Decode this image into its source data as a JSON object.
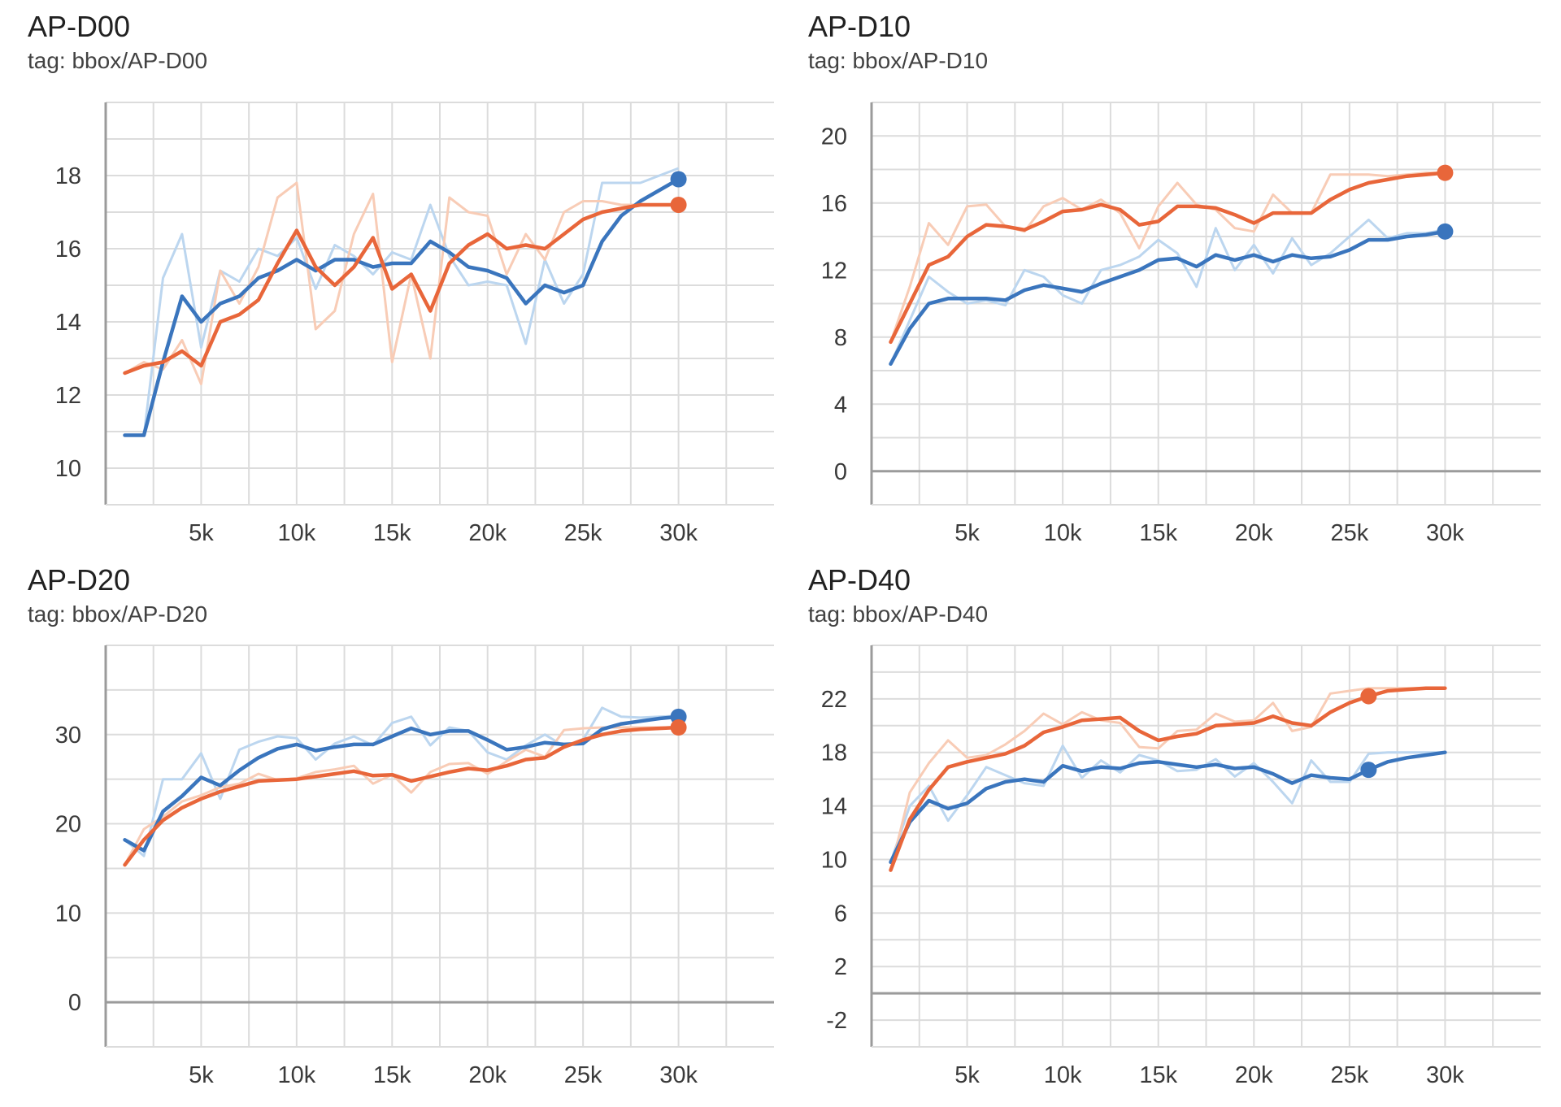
{
  "colors": {
    "blue": "#3a75bd",
    "orange": "#e8663a",
    "blue_raw": "#bcd6ef",
    "orange_raw": "#f8ccb6",
    "grid": "#dcdcdc",
    "axis": "#9b9b9b"
  },
  "chart_data": [
    {
      "type": "line",
      "title": "AP-D00",
      "subtitle": "tag: bbox/AP-D00",
      "xlim": [
        0,
        35000
      ],
      "ylim": [
        9,
        20
      ],
      "xticks": [
        5000,
        10000,
        15000,
        20000,
        25000,
        30000
      ],
      "xtick_labels": [
        "5k",
        "10k",
        "15k",
        "20k",
        "25k",
        "30k"
      ],
      "yticks": [
        10,
        12,
        14,
        16,
        18
      ],
      "ytick_labels": [
        "10",
        "12",
        "14",
        "16",
        "18"
      ],
      "grid": true,
      "x": [
        1000,
        2000,
        3000,
        4000,
        5000,
        6000,
        7000,
        8000,
        9000,
        10000,
        11000,
        12000,
        13000,
        14000,
        15000,
        16000,
        17000,
        18000,
        19000,
        20000,
        21000,
        22000,
        23000,
        24000,
        25000,
        26000,
        27000,
        28000,
        29000,
        30000
      ],
      "series": [
        {
          "color": "blue",
          "values": [
            10.9,
            10.9,
            12.9,
            14.7,
            14.0,
            14.5,
            14.7,
            15.2,
            15.4,
            15.7,
            15.4,
            15.7,
            15.7,
            15.5,
            15.6,
            15.6,
            16.2,
            15.9,
            15.5,
            15.4,
            15.2,
            14.5,
            15.0,
            14.8,
            15.0,
            16.2,
            16.9,
            17.3,
            17.6,
            17.9
          ],
          "raw": [
            10.9,
            10.9,
            15.2,
            16.4,
            13.3,
            15.4,
            15.1,
            16.0,
            15.8,
            16.3,
            14.9,
            16.1,
            15.8,
            15.3,
            15.9,
            15.7,
            17.2,
            15.8,
            15.0,
            15.1,
            15.0,
            13.4,
            15.7,
            14.5,
            15.3,
            17.8,
            17.8,
            17.8,
            18.0,
            18.2
          ],
          "end_marker": true
        },
        {
          "color": "orange",
          "values": [
            12.6,
            12.8,
            12.9,
            13.2,
            12.8,
            14.0,
            14.2,
            14.6,
            15.6,
            16.5,
            15.5,
            15.0,
            15.5,
            16.3,
            14.9,
            15.3,
            14.3,
            15.6,
            16.1,
            16.4,
            16.0,
            16.1,
            16.0,
            16.4,
            16.8,
            17.0,
            17.1,
            17.2,
            17.2,
            17.2
          ],
          "raw": [
            12.6,
            12.9,
            12.7,
            13.5,
            12.3,
            15.4,
            14.5,
            15.5,
            17.4,
            17.8,
            13.8,
            14.3,
            16.4,
            17.5,
            12.9,
            15.3,
            13.0,
            17.4,
            17.0,
            16.9,
            15.3,
            16.4,
            15.7,
            17.0,
            17.3,
            17.3,
            17.2,
            17.2,
            17.2,
            17.2
          ],
          "end_marker": true
        }
      ]
    },
    {
      "type": "line",
      "title": "AP-D10",
      "subtitle": "tag: bbox/AP-D10",
      "xlim": [
        0,
        35000
      ],
      "ylim": [
        -2,
        22
      ],
      "xticks": [
        5000,
        10000,
        15000,
        20000,
        25000,
        30000
      ],
      "xtick_labels": [
        "5k",
        "10k",
        "15k",
        "20k",
        "25k",
        "30k"
      ],
      "yticks": [
        0,
        4,
        8,
        12,
        16,
        20
      ],
      "ytick_labels": [
        "0",
        "4",
        "8",
        "12",
        "16",
        "20"
      ],
      "grid": true,
      "x": [
        1000,
        2000,
        3000,
        4000,
        5000,
        6000,
        7000,
        8000,
        9000,
        10000,
        11000,
        12000,
        13000,
        14000,
        15000,
        16000,
        17000,
        18000,
        19000,
        20000,
        21000,
        22000,
        23000,
        24000,
        25000,
        26000,
        27000,
        28000,
        29000,
        30000
      ],
      "series": [
        {
          "color": "blue",
          "values": [
            6.4,
            8.5,
            10.0,
            10.3,
            10.3,
            10.3,
            10.2,
            10.8,
            11.1,
            10.9,
            10.7,
            11.2,
            11.6,
            12.0,
            12.6,
            12.7,
            12.2,
            12.9,
            12.6,
            12.9,
            12.5,
            12.9,
            12.7,
            12.8,
            13.2,
            13.8,
            13.8,
            14.0,
            14.1,
            14.3
          ],
          "raw": [
            6.4,
            9.0,
            11.6,
            10.7,
            10.0,
            10.2,
            9.9,
            12.0,
            11.6,
            10.5,
            10.0,
            12.0,
            12.3,
            12.8,
            13.8,
            13.0,
            11.0,
            14.5,
            12.0,
            13.5,
            11.8,
            13.9,
            12.3,
            13.0,
            14.0,
            15.0,
            13.9,
            14.2,
            14.2,
            14.4
          ],
          "end_marker": true
        },
        {
          "color": "orange",
          "values": [
            7.7,
            10.0,
            12.3,
            12.8,
            14.0,
            14.7,
            14.6,
            14.4,
            14.9,
            15.5,
            15.6,
            15.9,
            15.6,
            14.7,
            14.9,
            15.8,
            15.8,
            15.7,
            15.3,
            14.8,
            15.4,
            15.4,
            15.4,
            16.2,
            16.8,
            17.2,
            17.4,
            17.6,
            17.7,
            17.8
          ],
          "raw": [
            7.7,
            11.0,
            14.8,
            13.5,
            15.8,
            15.9,
            14.6,
            14.3,
            15.8,
            16.3,
            15.6,
            16.2,
            15.4,
            13.3,
            15.8,
            17.2,
            15.9,
            15.6,
            14.5,
            14.3,
            16.5,
            15.4,
            15.4,
            17.7,
            17.7,
            17.7,
            17.6,
            17.7,
            17.8,
            17.8
          ],
          "end_marker": true
        }
      ]
    },
    {
      "type": "line",
      "title": "AP-D20",
      "subtitle": "tag: bbox/AP-D20",
      "xlim": [
        0,
        35000
      ],
      "ylim": [
        -5,
        40
      ],
      "xticks": [
        5000,
        10000,
        15000,
        20000,
        25000,
        30000
      ],
      "xtick_labels": [
        "5k",
        "10k",
        "15k",
        "20k",
        "25k",
        "30k"
      ],
      "yticks": [
        0,
        10,
        20,
        30
      ],
      "ytick_labels": [
        "0",
        "10",
        "20",
        "30"
      ],
      "grid": true,
      "x": [
        1000,
        2000,
        3000,
        4000,
        5000,
        6000,
        7000,
        8000,
        9000,
        10000,
        11000,
        12000,
        13000,
        14000,
        15000,
        16000,
        17000,
        18000,
        19000,
        20000,
        21000,
        22000,
        23000,
        24000,
        25000,
        26000,
        27000,
        28000,
        29000,
        30000
      ],
      "series": [
        {
          "color": "blue",
          "values": [
            18.2,
            17.0,
            21.4,
            23.1,
            25.2,
            24.3,
            26.0,
            27.4,
            28.4,
            28.9,
            28.2,
            28.6,
            28.9,
            28.9,
            29.8,
            30.7,
            30.0,
            30.4,
            30.4,
            29.4,
            28.3,
            28.6,
            29.1,
            28.9,
            29.0,
            30.6,
            31.2,
            31.5,
            31.8,
            32.0
          ],
          "raw": [
            18.2,
            16.4,
            25.0,
            25.0,
            27.9,
            22.8,
            28.3,
            29.2,
            29.8,
            29.6,
            27.2,
            29.0,
            29.8,
            28.8,
            31.3,
            32.0,
            28.8,
            30.8,
            30.4,
            28.0,
            27.2,
            28.8,
            30.0,
            28.7,
            29.4,
            33.0,
            32.0,
            31.9,
            32.0,
            32.1
          ],
          "end_marker": true
        },
        {
          "color": "orange",
          "values": [
            15.4,
            18.2,
            20.4,
            21.8,
            22.8,
            23.6,
            24.2,
            24.8,
            24.9,
            25.0,
            25.3,
            25.6,
            25.9,
            25.4,
            25.5,
            24.8,
            25.3,
            25.8,
            26.2,
            26.0,
            26.5,
            27.2,
            27.4,
            28.6,
            29.4,
            30.0,
            30.4,
            30.6,
            30.7,
            30.8
          ],
          "raw": [
            15.4,
            19.4,
            20.8,
            22.5,
            23.2,
            24.1,
            24.5,
            25.6,
            24.9,
            25.1,
            25.8,
            26.1,
            26.5,
            24.5,
            25.5,
            23.5,
            25.8,
            26.7,
            26.8,
            25.6,
            27.0,
            28.3,
            27.5,
            30.5,
            30.7,
            30.8,
            30.8,
            30.8,
            30.8,
            30.8
          ],
          "end_marker": true
        }
      ]
    },
    {
      "type": "line",
      "title": "AP-D40",
      "subtitle": "tag: bbox/AP-D40",
      "xlim": [
        0,
        35000
      ],
      "ylim": [
        -4,
        26
      ],
      "xticks": [
        5000,
        10000,
        15000,
        20000,
        25000,
        30000
      ],
      "xtick_labels": [
        "5k",
        "10k",
        "15k",
        "20k",
        "25k",
        "30k"
      ],
      "yticks": [
        -2,
        2,
        6,
        10,
        14,
        18,
        22
      ],
      "ytick_labels": [
        "-2",
        "2",
        "6",
        "10",
        "14",
        "18",
        "22"
      ],
      "grid": true,
      "x": [
        1000,
        2000,
        3000,
        4000,
        5000,
        6000,
        7000,
        8000,
        9000,
        10000,
        11000,
        12000,
        13000,
        14000,
        15000,
        16000,
        17000,
        18000,
        19000,
        20000,
        21000,
        22000,
        23000,
        24000,
        25000,
        26000,
        27000,
        28000,
        29000,
        30000
      ],
      "series": [
        {
          "color": "blue",
          "values": [
            9.8,
            12.8,
            14.4,
            13.8,
            14.2,
            15.3,
            15.8,
            16.0,
            15.8,
            17.0,
            16.6,
            16.9,
            16.8,
            17.2,
            17.3,
            17.1,
            16.9,
            17.1,
            16.8,
            16.9,
            16.4,
            15.7,
            16.3,
            16.1,
            16.0,
            16.7,
            17.3,
            17.6,
            17.8,
            18.0
          ],
          "raw": [
            9.8,
            14.0,
            15.5,
            12.9,
            14.8,
            16.9,
            16.3,
            15.7,
            15.5,
            18.5,
            16.1,
            17.4,
            16.5,
            17.8,
            17.4,
            16.6,
            16.7,
            17.5,
            16.2,
            17.2,
            15.8,
            14.2,
            17.4,
            15.8,
            15.8,
            17.9,
            18.0,
            18.0,
            18.0,
            18.0
          ],
          "marker_x": 26000,
          "marker_y": 16.7
        },
        {
          "color": "orange",
          "values": [
            9.2,
            13.0,
            15.2,
            16.9,
            17.3,
            17.6,
            17.9,
            18.5,
            19.5,
            19.9,
            20.4,
            20.5,
            20.6,
            19.6,
            18.9,
            19.2,
            19.4,
            20.0,
            20.1,
            20.2,
            20.7,
            20.2,
            20.0,
            21.0,
            21.7,
            22.2,
            22.6,
            22.7,
            22.8,
            22.8
          ],
          "raw": [
            9.2,
            15.0,
            17.2,
            18.9,
            17.6,
            17.8,
            18.6,
            19.6,
            20.9,
            20.1,
            21.0,
            20.4,
            20.2,
            18.4,
            18.3,
            19.6,
            19.7,
            20.9,
            20.3,
            20.4,
            21.7,
            19.6,
            19.9,
            22.4,
            22.6,
            22.8,
            22.8,
            22.8,
            22.8,
            22.8
          ],
          "marker_x": 26000,
          "marker_y": 22.2
        }
      ]
    }
  ]
}
